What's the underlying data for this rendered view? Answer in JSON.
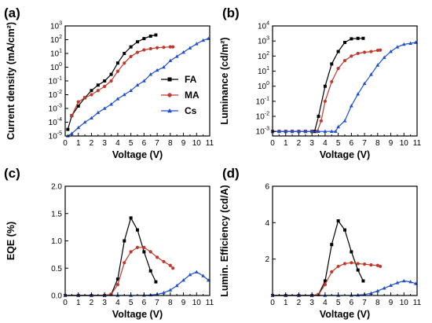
{
  "chart_data": [
    {
      "type": "line",
      "panel_label": "(a)",
      "xlabel": "Voltage (V)",
      "ylabel": "Current density (mA/cm²)",
      "xlim": [
        0,
        11
      ],
      "ylim": [
        1e-05,
        1000
      ],
      "yscale": "log",
      "x_ticks": [
        "0",
        "1",
        "2",
        "3",
        "4",
        "5",
        "6",
        "7",
        "8",
        "9",
        "10",
        "11"
      ],
      "y_ticks": [
        {
          "base": "10",
          "exp": "-5"
        },
        {
          "base": "10",
          "exp": "-4"
        },
        {
          "base": "10",
          "exp": "-3"
        },
        {
          "base": "10",
          "exp": "-2"
        },
        {
          "base": "10",
          "exp": "-1"
        },
        {
          "base": "10",
          "exp": "0"
        },
        {
          "base": "10",
          "exp": "1"
        },
        {
          "base": "10",
          "exp": "2"
        },
        {
          "base": "10",
          "exp": "3"
        }
      ],
      "legend": "bottom-right",
      "series": [
        {
          "name": "FA",
          "color": "#000000",
          "marker": "square",
          "x": [
            0.2,
            0.5,
            1,
            1.5,
            2,
            2.5,
            3,
            3.5,
            4,
            4.5,
            5,
            5.5,
            6,
            6.5,
            6.9
          ],
          "y": [
            3e-05,
            0.0003,
            0.0015,
            0.006,
            0.02,
            0.05,
            0.1,
            0.3,
            2,
            10,
            30,
            70,
            120,
            180,
            220
          ]
        },
        {
          "name": "MA",
          "color": "#c0392b",
          "marker": "circle",
          "x": [
            0.5,
            1,
            1.5,
            2,
            2.5,
            3,
            3.5,
            4,
            4.5,
            5,
            5.5,
            6,
            6.5,
            7,
            7.5,
            8,
            8.2
          ],
          "y": [
            0.0003,
            0.003,
            0.006,
            0.01,
            0.02,
            0.04,
            0.1,
            0.5,
            2,
            6,
            12,
            18,
            22,
            26,
            28,
            30,
            30
          ]
        },
        {
          "name": "Cs",
          "color": "#1f4fd1",
          "marker": "triangle",
          "x": [
            0.2,
            0.5,
            1,
            1.5,
            2,
            2.5,
            3,
            3.5,
            4,
            4.5,
            5,
            5.5,
            6,
            6.5,
            7,
            7.5,
            8,
            8.5,
            9,
            9.5,
            10,
            10.5,
            10.9
          ],
          "y": [
            1e-05,
            1.5e-05,
            4e-05,
            0.0001,
            0.0002,
            0.0005,
            0.001,
            0.002,
            0.005,
            0.01,
            0.02,
            0.05,
            0.1,
            0.3,
            0.6,
            1,
            3,
            6,
            12,
            25,
            50,
            90,
            120
          ]
        }
      ]
    },
    {
      "type": "line",
      "panel_label": "(b)",
      "xlabel": "Voltage (V)",
      "ylabel": "Luminance (cd/m²)",
      "xlim": [
        0,
        11
      ],
      "ylim": [
        0.0005,
        10000
      ],
      "yscale": "log",
      "x_ticks": [
        "0",
        "1",
        "2",
        "3",
        "4",
        "5",
        "6",
        "7",
        "8",
        "9",
        "10",
        "11"
      ],
      "y_ticks": [
        {
          "base": "10",
          "exp": "-3"
        },
        {
          "base": "10",
          "exp": "-2"
        },
        {
          "base": "10",
          "exp": "-1"
        },
        {
          "base": "10",
          "exp": "0"
        },
        {
          "base": "10",
          "exp": "1"
        },
        {
          "base": "10",
          "exp": "2"
        },
        {
          "base": "10",
          "exp": "3"
        },
        {
          "base": "10",
          "exp": "4"
        }
      ],
      "series": [
        {
          "name": "FA",
          "color": "#000000",
          "marker": "square",
          "x": [
            0,
            0.5,
            1,
            1.5,
            2,
            2.5,
            3,
            3.2,
            3.5,
            4,
            4.5,
            5,
            5.5,
            6,
            6.5,
            6.9
          ],
          "y": [
            0.001,
            0.001,
            0.001,
            0.001,
            0.001,
            0.001,
            0.001,
            0.001,
            0.01,
            1,
            30,
            200,
            800,
            1400,
            1500,
            1500
          ]
        },
        {
          "name": "MA",
          "color": "#c0392b",
          "marker": "circle",
          "x": [
            0,
            0.5,
            1,
            1.5,
            2,
            2.5,
            3,
            3.4,
            3.7,
            4,
            4.5,
            5,
            5.5,
            6,
            6.5,
            7,
            7.5,
            8,
            8.2
          ],
          "y": [
            0.001,
            0.001,
            0.001,
            0.001,
            0.001,
            0.001,
            0.001,
            0.001,
            0.005,
            0.1,
            2,
            15,
            50,
            100,
            150,
            180,
            200,
            240,
            250
          ]
        },
        {
          "name": "Cs",
          "color": "#1f4fd1",
          "marker": "triangle",
          "x": [
            0,
            0.5,
            1,
            1.5,
            2,
            2.5,
            3,
            3.5,
            4,
            4.5,
            4.8,
            5,
            5.5,
            6,
            6.5,
            7,
            7.5,
            8,
            8.5,
            9,
            9.5,
            10,
            10.5,
            10.9
          ],
          "y": [
            0.001,
            0.001,
            0.001,
            0.001,
            0.001,
            0.001,
            0.001,
            0.001,
            0.001,
            0.001,
            0.001,
            0.002,
            0.005,
            0.05,
            0.3,
            1.5,
            6,
            25,
            80,
            200,
            400,
            600,
            700,
            800
          ]
        }
      ]
    },
    {
      "type": "line",
      "panel_label": "(c)",
      "xlabel": "Voltage (V)",
      "ylabel": "EQE (%)",
      "xlim": [
        0,
        11
      ],
      "ylim": [
        0,
        2.0
      ],
      "x_ticks": [
        "0",
        "1",
        "2",
        "3",
        "4",
        "5",
        "6",
        "7",
        "8",
        "9",
        "10",
        "11"
      ],
      "y_ticks": [
        "0.0",
        "0.5",
        "1.0",
        "1.5",
        "2.0"
      ],
      "series": [
        {
          "name": "FA",
          "color": "#000000",
          "marker": "square",
          "x": [
            0,
            1,
            2,
            3,
            3.5,
            4,
            4.5,
            5,
            5.5,
            6,
            6.5,
            6.9
          ],
          "y": [
            0,
            0,
            0,
            0,
            0.02,
            0.3,
            1.0,
            1.42,
            1.2,
            0.8,
            0.45,
            0.25
          ]
        },
        {
          "name": "MA",
          "color": "#c0392b",
          "marker": "circle",
          "x": [
            0,
            1,
            2,
            3,
            3.5,
            4,
            4.5,
            5,
            5.5,
            6,
            6.5,
            7,
            7.5,
            8,
            8.2
          ],
          "y": [
            0,
            0,
            0,
            0,
            0.02,
            0.2,
            0.6,
            0.8,
            0.88,
            0.88,
            0.8,
            0.7,
            0.62,
            0.55,
            0.5
          ]
        },
        {
          "name": "Cs",
          "color": "#1f4fd1",
          "marker": "triangle",
          "x": [
            0,
            1,
            2,
            3,
            4,
            5,
            6,
            6.5,
            7,
            7.5,
            8,
            8.5,
            9,
            9.5,
            10,
            10.5,
            10.9
          ],
          "y": [
            0,
            0,
            0,
            0,
            0,
            0,
            0.005,
            0.01,
            0.02,
            0.05,
            0.1,
            0.18,
            0.28,
            0.38,
            0.43,
            0.36,
            0.28
          ]
        }
      ]
    },
    {
      "type": "line",
      "panel_label": "(d)",
      "xlabel": "Voltage (V)",
      "ylabel": "Lumin. Efficiency (cd/A)",
      "xlim": [
        0,
        11
      ],
      "ylim": [
        0,
        6
      ],
      "x_ticks": [
        "0",
        "1",
        "2",
        "3",
        "4",
        "5",
        "6",
        "7",
        "8",
        "9",
        "10",
        "11"
      ],
      "y_ticks": [
        "2",
        "4",
        "6"
      ],
      "series": [
        {
          "name": "FA",
          "color": "#000000",
          "marker": "square",
          "x": [
            0,
            1,
            2,
            3,
            3.5,
            4,
            4.5,
            5,
            5.5,
            6,
            6.5,
            6.9
          ],
          "y": [
            0,
            0,
            0,
            0,
            0.05,
            0.8,
            2.8,
            4.1,
            3.6,
            2.4,
            1.4,
            0.8
          ]
        },
        {
          "name": "MA",
          "color": "#c0392b",
          "marker": "circle",
          "x": [
            0,
            1,
            2,
            3,
            3.5,
            4,
            4.5,
            5,
            5.5,
            6,
            6.5,
            7,
            7.5,
            8,
            8.2
          ],
          "y": [
            0,
            0,
            0,
            0,
            0.05,
            0.6,
            1.3,
            1.6,
            1.75,
            1.8,
            1.75,
            1.72,
            1.68,
            1.65,
            1.6
          ]
        },
        {
          "name": "Cs",
          "color": "#1f4fd1",
          "marker": "triangle",
          "x": [
            0,
            1,
            2,
            3,
            4,
            5,
            6,
            6.5,
            7,
            7.5,
            8,
            8.5,
            9,
            9.5,
            10,
            10.5,
            10.9
          ],
          "y": [
            0,
            0,
            0,
            0,
            0,
            0,
            0.01,
            0.02,
            0.05,
            0.12,
            0.25,
            0.4,
            0.55,
            0.7,
            0.8,
            0.75,
            0.65
          ]
        }
      ]
    }
  ]
}
